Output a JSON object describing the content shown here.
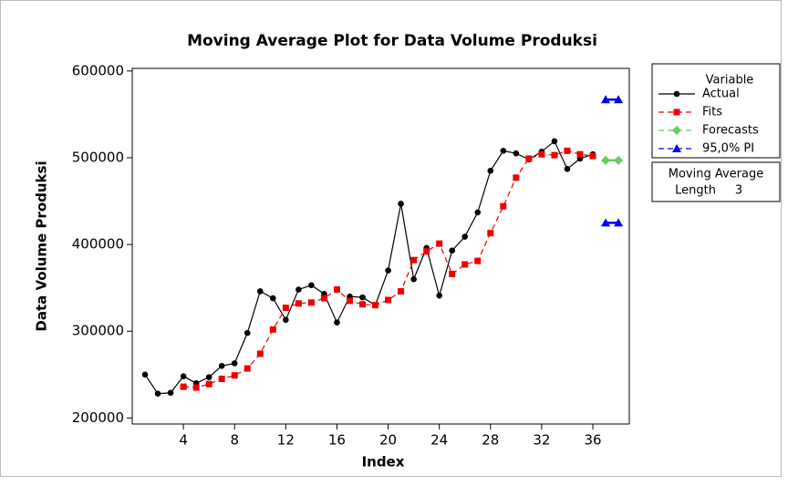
{
  "chart_data": {
    "type": "line",
    "title": "Moving Average Plot for Data Volume Produksi",
    "x_label": "Index",
    "y_label": "Data Volume Produksi",
    "xlim": [
      0,
      38.85
    ],
    "ylim": [
      193000,
      603000
    ],
    "xticks": [
      4,
      8,
      12,
      16,
      20,
      24,
      28,
      32,
      36
    ],
    "yticks": [
      200000,
      300000,
      400000,
      500000,
      600000
    ],
    "legend_title": "Variable",
    "legend_position": "right",
    "series": [
      {
        "name": "Actual",
        "color": "#000000",
        "marker": "circle",
        "line": "solid",
        "x": [
          1,
          2,
          3,
          4,
          5,
          6,
          7,
          8,
          9,
          10,
          11,
          12,
          13,
          14,
          15,
          16,
          17,
          18,
          19,
          20,
          21,
          22,
          23,
          24,
          25,
          26,
          27,
          28,
          29,
          30,
          31,
          32,
          33,
          34,
          35,
          36
        ],
        "values": [
          250000,
          228000,
          229000,
          248000,
          240000,
          247000,
          260000,
          263000,
          298000,
          346000,
          338000,
          313000,
          348000,
          353000,
          343000,
          310000,
          340000,
          339000,
          330000,
          370000,
          447000,
          360000,
          396000,
          341000,
          393000,
          409000,
          437000,
          485000,
          508000,
          505000,
          498000,
          507000,
          519000,
          487000,
          499000,
          504000
        ]
      },
      {
        "name": "Fits",
        "color": "#ee0000",
        "marker": "square",
        "line": "dashed",
        "x": [
          4,
          5,
          6,
          7,
          8,
          9,
          10,
          11,
          12,
          13,
          14,
          15,
          16,
          17,
          18,
          19,
          20,
          21,
          22,
          23,
          24,
          25,
          26,
          27,
          28,
          29,
          30,
          31,
          32,
          33,
          34,
          35,
          36
        ],
        "values": [
          236000,
          235000,
          239000,
          245000,
          249000,
          257000,
          274000,
          302000,
          327000,
          332000,
          333000,
          338000,
          348000,
          335000,
          331000,
          330000,
          336000,
          346000,
          382000,
          392000,
          401000,
          366000,
          377000,
          381000,
          413000,
          444000,
          477000,
          499000,
          504000,
          503000,
          508000,
          504000,
          502000
        ]
      },
      {
        "name": "Forecasts",
        "color": "#66cc66",
        "marker": "diamond",
        "line": "dashed",
        "x": [
          37,
          38
        ],
        "values": [
          497000,
          497000
        ]
      },
      {
        "name": "95,0% PI",
        "color": "#0000ee",
        "marker": "triangle",
        "line": "dashed",
        "x": [
          37,
          38,
          null,
          37,
          38
        ],
        "values": [
          567000,
          567000,
          null,
          425000,
          425000
        ]
      }
    ],
    "annotation": {
      "title": "Moving Average",
      "label": "Length",
      "value": 3
    }
  }
}
